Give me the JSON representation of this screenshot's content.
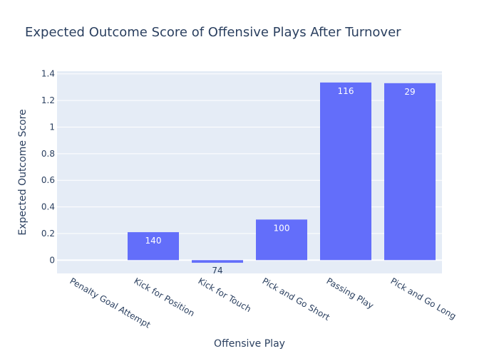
{
  "chart_data": {
    "type": "bar",
    "title": "Expected Outcome Score of Offensive Plays After Turnover",
    "xlabel": "Offensive Play",
    "ylabel": "Expected Outcome Score",
    "categories": [
      "Penalty Goal Attempt",
      "Kick for Position",
      "Kick for Touch",
      "Pick and Go Short",
      "Passing Play",
      "Pick and Go Long"
    ],
    "values": [
      0,
      0.21,
      -0.02,
      0.305,
      1.335,
      1.33
    ],
    "bar_labels": [
      "",
      "140",
      "74",
      "100",
      "116",
      "29"
    ],
    "ylim": [
      -0.1,
      1.42
    ],
    "yticks": [
      0,
      0.2,
      0.4,
      0.6,
      0.8,
      1,
      1.2,
      1.4
    ],
    "ytick_labels": [
      "0",
      "0.2",
      "0.4",
      "0.6",
      "0.8",
      "1",
      "1.2",
      "1.4"
    ],
    "grid": true,
    "colors": {
      "bar": "#636efa",
      "plot_bg": "#e5ecf6",
      "grid": "#ffffff",
      "text": "#2a3f5f"
    }
  }
}
